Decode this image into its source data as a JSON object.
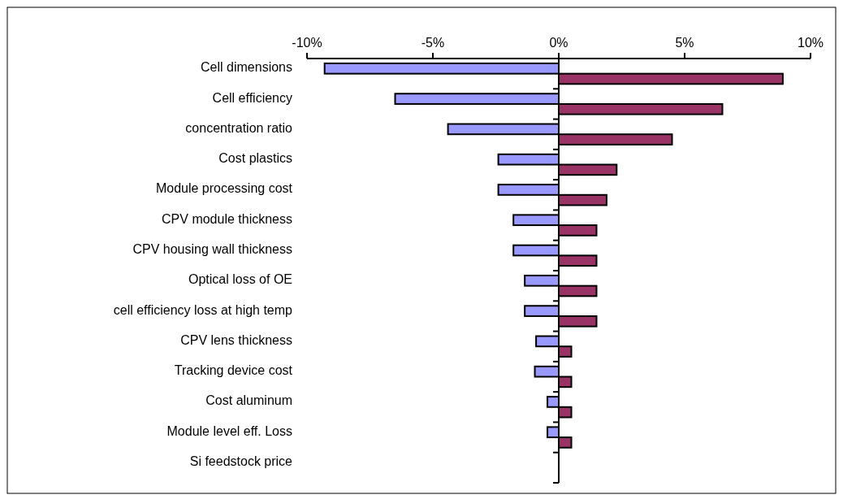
{
  "chart_data": {
    "type": "bar",
    "orientation": "horizontal",
    "categories": [
      "Cell dimensions",
      "Cell efficiency",
      "concentration ratio",
      "Cost plastics",
      "Module processing cost",
      "CPV module thickness",
      "CPV housing wall thickness",
      "Optical loss of OE",
      "cell efficiency loss at high temp",
      "CPV lens thickness",
      "Tracking device cost",
      "Cost aluminum ",
      "Module level eff. Loss",
      "Si feedstock price"
    ],
    "series": [
      {
        "color": "#9999ff",
        "values": [
          -9.3,
          -6.5,
          -4.4,
          -2.4,
          -2.4,
          -1.8,
          -1.8,
          -1.35,
          -1.35,
          -0.9,
          -0.95,
          -0.45,
          -0.45,
          0
        ]
      },
      {
        "color": "#993366",
        "values": [
          8.9,
          6.5,
          4.5,
          2.3,
          1.9,
          1.5,
          1.5,
          1.5,
          1.5,
          0.5,
          0.5,
          0.5,
          0.5,
          0
        ]
      }
    ],
    "xlim": [
      -10,
      10
    ],
    "xticks": [
      {
        "value": -10,
        "label": "-10%"
      },
      {
        "value": -5,
        "label": "-5%"
      },
      {
        "value": 0,
        "label": "0%"
      },
      {
        "value": 5,
        "label": "5%"
      },
      {
        "value": 10,
        "label": "10%"
      }
    ]
  }
}
